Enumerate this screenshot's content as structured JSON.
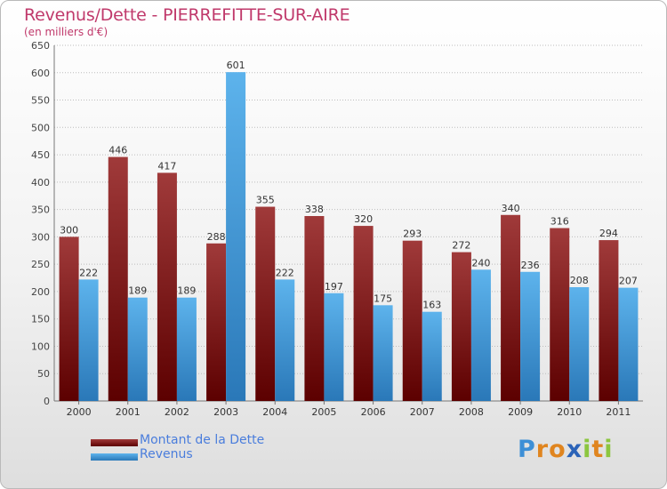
{
  "title": "Revenus/Dette - PIERREFITTE-SUR-AIRE",
  "subtitle": "(en milliers d'€)",
  "logo": "Proxiti",
  "colors": {
    "debt_dark": "#5c0000",
    "debt_light": "#a03a3a",
    "revenue_dark": "#2a78b8",
    "revenue_light": "#5db3ec",
    "title": "#c0396b",
    "legend_text": "#4a7ddc"
  },
  "chart_data": {
    "type": "bar",
    "categories": [
      "2000",
      "2001",
      "2002",
      "2003",
      "2004",
      "2005",
      "2006",
      "2007",
      "2008",
      "2009",
      "2010",
      "2011"
    ],
    "series": [
      {
        "name": "Montant de la Dette",
        "values": [
          300,
          446,
          417,
          288,
          355,
          338,
          320,
          293,
          272,
          340,
          316,
          294
        ]
      },
      {
        "name": "Revenus",
        "values": [
          222,
          189,
          189,
          601,
          222,
          197,
          175,
          163,
          240,
          236,
          208,
          207
        ]
      }
    ],
    "ylim": [
      0,
      650
    ],
    "yticks": [
      0,
      50,
      100,
      150,
      200,
      250,
      300,
      350,
      400,
      450,
      500,
      550,
      600,
      650
    ],
    "grid": true,
    "legend_position": "bottom-left"
  }
}
